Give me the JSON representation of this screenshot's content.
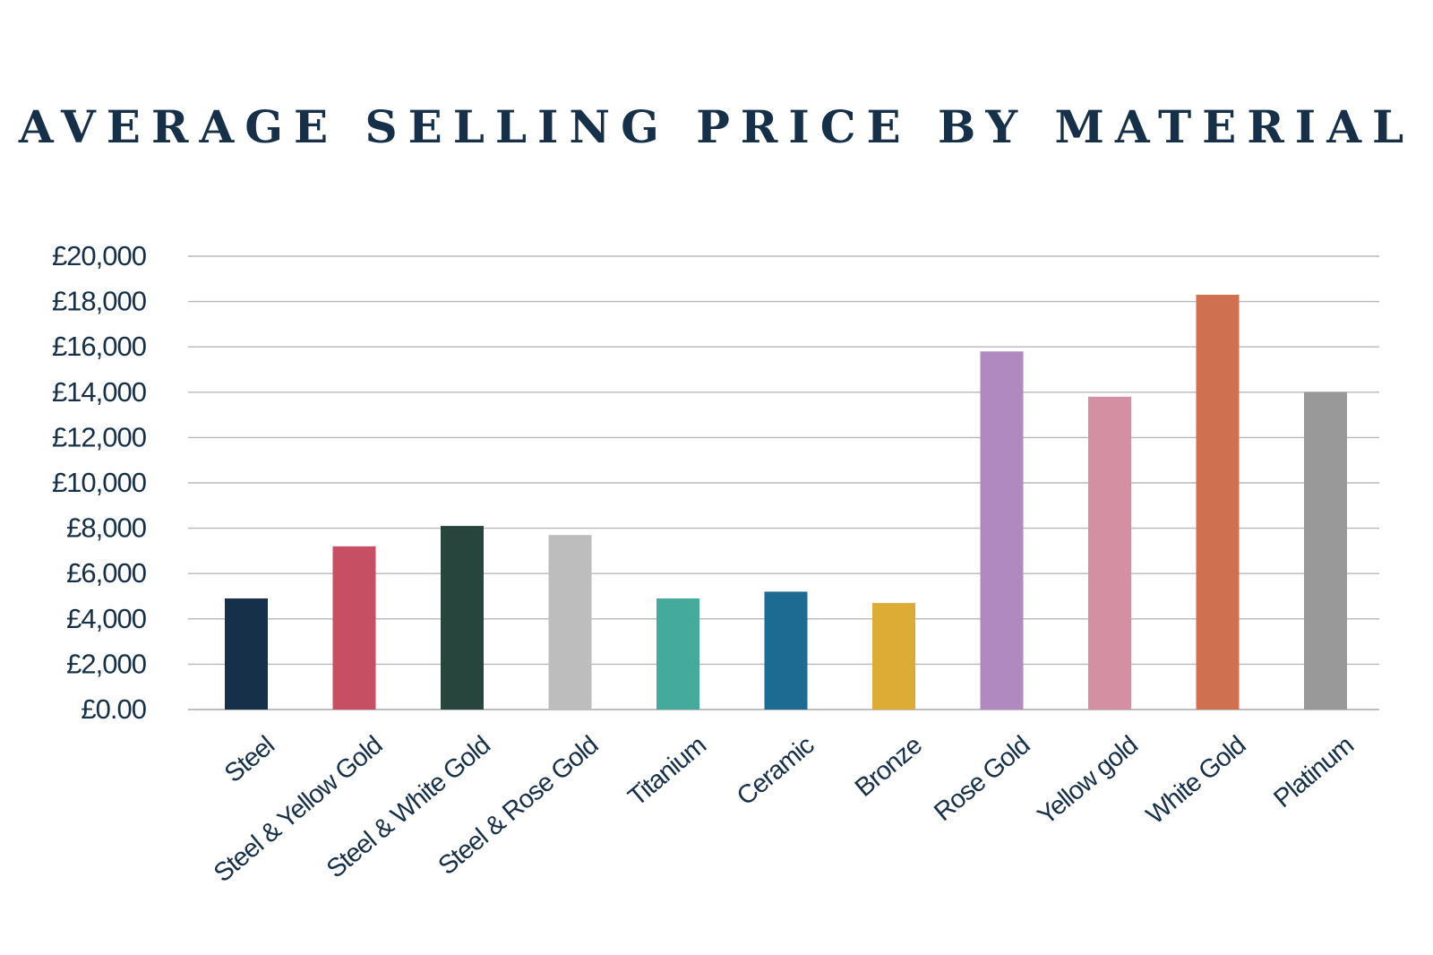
{
  "chart_data": {
    "type": "bar",
    "title": "AVERAGE SELLING PRICE BY MATERIAL",
    "xlabel": "",
    "ylabel": "",
    "ylim": [
      0,
      20000
    ],
    "y_ticks": [
      {
        "value": 0,
        "label": "£0.00"
      },
      {
        "value": 2000,
        "label": "£2,000"
      },
      {
        "value": 4000,
        "label": "£4,000"
      },
      {
        "value": 6000,
        "label": "£6,000"
      },
      {
        "value": 8000,
        "label": "£8,000"
      },
      {
        "value": 10000,
        "label": "£10,000"
      },
      {
        "value": 12000,
        "label": "£12,000"
      },
      {
        "value": 14000,
        "label": "£14,000"
      },
      {
        "value": 16000,
        "label": "£16,000"
      },
      {
        "value": 18000,
        "label": "£18,000"
      },
      {
        "value": 20000,
        "label": "£20,000"
      }
    ],
    "grid": true,
    "legend": "none",
    "categories": [
      "Steel",
      "Steel & Yellow Gold",
      "Steel & White Gold",
      "Steel & Rose Gold",
      "Titanium",
      "Ceramic",
      "Bronze",
      "Rose Gold",
      "Yellow gold",
      "White Gold",
      "Platinum"
    ],
    "values": [
      4900,
      7200,
      8100,
      7700,
      4900,
      5200,
      4700,
      15800,
      13800,
      18300,
      14000
    ],
    "colors": [
      "#163049",
      "#c64f63",
      "#27453c",
      "#bdbdbe",
      "#44ab9c",
      "#1d6a92",
      "#dcac35",
      "#af89bf",
      "#d48fa3",
      "#cf7150",
      "#999999"
    ]
  },
  "colors": {
    "text": "#16304a",
    "grid": "#b8b8b8",
    "background": "#ffffff"
  }
}
